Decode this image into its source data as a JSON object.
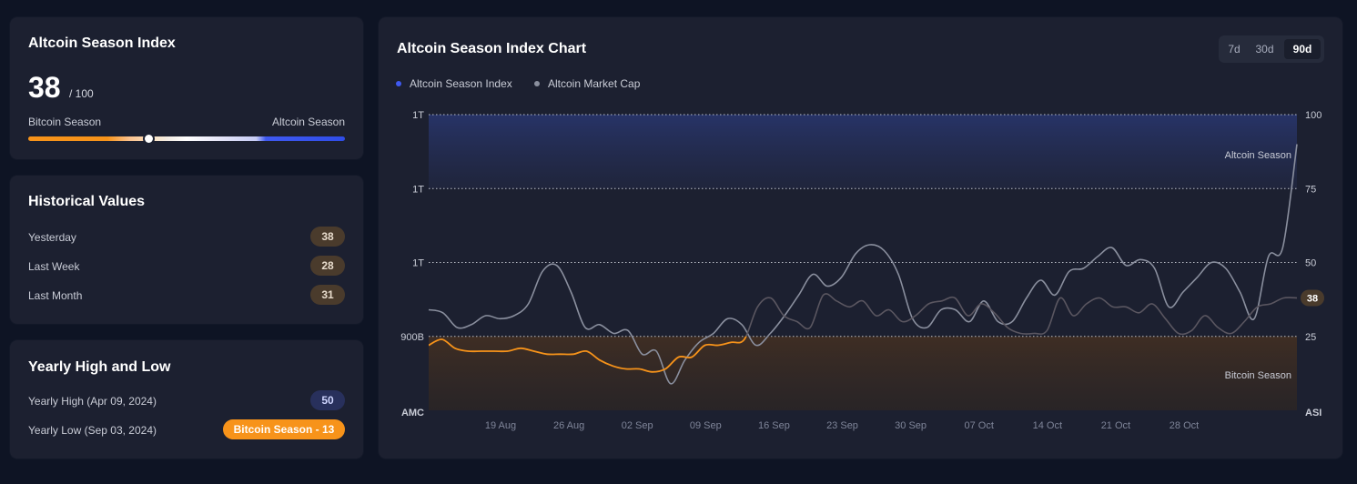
{
  "index_card": {
    "title": "Altcoin Season Index",
    "value": "38",
    "suffix": "/ 100",
    "value_fraction": 0.38,
    "left_label": "Bitcoin Season",
    "right_label": "Altcoin Season"
  },
  "historical": {
    "title": "Historical Values",
    "rows": [
      {
        "label": "Yesterday",
        "value": "38"
      },
      {
        "label": "Last Week",
        "value": "28"
      },
      {
        "label": "Last Month",
        "value": "31"
      }
    ]
  },
  "yearly": {
    "title": "Yearly High and Low",
    "high_label": "Yearly High (Apr 09, 2024)",
    "high_value": "50",
    "low_label": "Yearly Low (Sep 03, 2024)",
    "low_value": "Bitcoin Season - 13"
  },
  "chart_panel": {
    "title": "Altcoin Season Index Chart",
    "timeframes": [
      {
        "label": "7d",
        "active": false
      },
      {
        "label": "30d",
        "active": false
      },
      {
        "label": "90d",
        "active": true
      }
    ],
    "current_value_badge": "38"
  },
  "colors": {
    "background": "#0e1424",
    "card": "#1c2030",
    "bitcoin_orange": "#f7931a",
    "altcoin_blue": "#3f59f0",
    "market_cap_gray": "#8a8f9e"
  },
  "chart_data": {
    "type": "line",
    "title": "Altcoin Season Index Chart",
    "legend": [
      {
        "name": "Altcoin Season Index",
        "color": "#3f59f0"
      },
      {
        "name": "Altcoin Market Cap",
        "color": "#8a8f9e"
      }
    ],
    "legend_position": "top-left",
    "grid": true,
    "x_ticks": [
      "19 Aug",
      "26 Aug",
      "02 Sep",
      "09 Sep",
      "16 Sep",
      "23 Sep",
      "30 Sep",
      "07 Oct",
      "14 Oct",
      "21 Oct",
      "28 Oct"
    ],
    "left_axis": {
      "ticks": [
        "1T",
        "1T",
        "1T",
        "900B"
      ],
      "corner_label": "AMC"
    },
    "right_axis": {
      "ticks": [
        100,
        75,
        50,
        25
      ],
      "corner_label": "ASI",
      "range": [
        0,
        100
      ]
    },
    "zones": [
      {
        "label": "Altcoin Season",
        "from": 75,
        "to": 100
      },
      {
        "label": "Bitcoin Season",
        "from": 0,
        "to": 25
      }
    ],
    "series": [
      {
        "name": "Altcoin Season Index",
        "values": [
          22,
          24,
          21,
          20,
          20,
          20,
          20,
          21,
          20,
          19,
          19,
          19,
          20,
          17,
          15,
          14,
          14,
          13,
          14,
          18,
          18,
          22,
          22,
          23,
          24,
          35,
          38,
          32,
          30,
          28,
          39,
          37,
          35,
          37,
          32,
          34,
          30,
          32,
          36,
          37,
          38,
          32,
          36,
          33,
          28,
          26,
          26,
          27,
          38,
          32,
          36,
          38,
          35,
          35,
          33,
          36,
          31,
          26,
          27,
          32,
          28,
          26,
          30,
          35,
          36,
          38,
          38
        ]
      },
      {
        "name": "Altcoin Market Cap",
        "index_scale_values": [
          34,
          33,
          28,
          29,
          32,
          31,
          32,
          36,
          47,
          49,
          40,
          28,
          29,
          26,
          27,
          19,
          20,
          9,
          17,
          23,
          26,
          31,
          29,
          22,
          26,
          32,
          39,
          46,
          42,
          45,
          53,
          56,
          54,
          46,
          31,
          28,
          34,
          34,
          30,
          37,
          30,
          30,
          38,
          44,
          39,
          47,
          48,
          52,
          55,
          49,
          51,
          48,
          35,
          40,
          45,
          50,
          48,
          40,
          31,
          52,
          55,
          90
        ]
      }
    ]
  }
}
